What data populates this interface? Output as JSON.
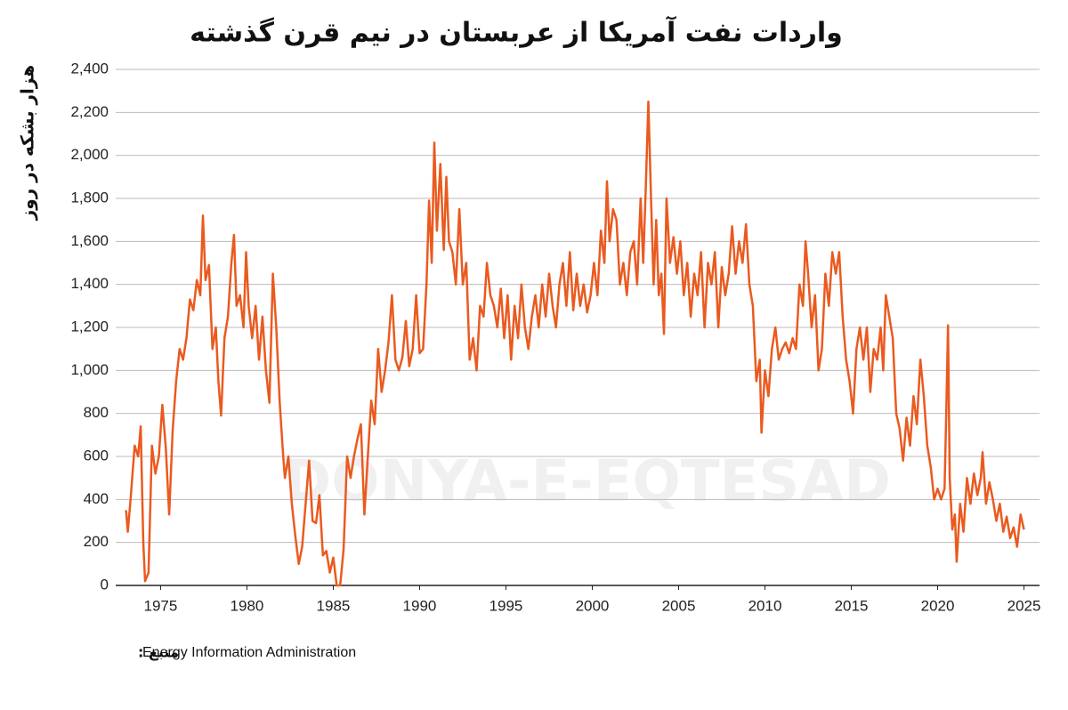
{
  "chart_data": {
    "type": "line",
    "title": "واردات نفت آمریکا از عربستان در نیم قرن گذشته",
    "y_label": "هزار بشکه در روز",
    "source_label": "منبع :",
    "source": "Energy Information Administration",
    "watermark": "DONYA-E-EQTESAD",
    "xlim": [
      1972.4,
      2025.9
    ],
    "xticks": [
      1975,
      1980,
      1985,
      1990,
      1995,
      2000,
      2005,
      2010,
      2015,
      2020,
      2025
    ],
    "ylim": [
      0,
      2400
    ],
    "yticks": [
      0,
      {
        "value": 200,
        "label": "200"
      },
      {
        "value": 400,
        "label": "400"
      },
      {
        "value": 600,
        "label": "600"
      },
      {
        "value": 800,
        "label": "800"
      },
      {
        "value": 1000,
        "label": "1,000"
      },
      {
        "value": 1200,
        "label": "1,200"
      },
      {
        "value": 1400,
        "label": "1,400"
      },
      {
        "value": 1600,
        "label": "1,600"
      },
      {
        "value": 1800,
        "label": "1,800"
      },
      {
        "value": 2000,
        "label": "2,000"
      },
      {
        "value": 2200,
        "label": "2,200"
      },
      {
        "value": 2400,
        "label": "2,400"
      }
    ],
    "grid": true,
    "x": [
      1973.0,
      1973.1,
      1973.25,
      1973.5,
      1973.7,
      1973.85,
      1974.0,
      1974.1,
      1974.3,
      1974.5,
      1974.7,
      1974.9,
      1975.1,
      1975.3,
      1975.5,
      1975.7,
      1975.9,
      1976.1,
      1976.3,
      1976.5,
      1976.7,
      1976.9,
      1977.1,
      1977.3,
      1977.45,
      1977.6,
      1977.8,
      1978.0,
      1978.2,
      1978.35,
      1978.5,
      1978.7,
      1978.9,
      1979.1,
      1979.25,
      1979.4,
      1979.6,
      1979.8,
      1979.95,
      1980.1,
      1980.3,
      1980.5,
      1980.7,
      1980.9,
      1981.1,
      1981.3,
      1981.5,
      1981.7,
      1981.9,
      1982.1,
      1982.2,
      1982.4,
      1982.6,
      1982.8,
      1983.0,
      1983.2,
      1983.4,
      1983.6,
      1983.8,
      1984.0,
      1984.2,
      1984.4,
      1984.6,
      1984.8,
      1985.0,
      1985.2,
      1985.4,
      1985.6,
      1985.8,
      1986.0,
      1986.2,
      1986.4,
      1986.6,
      1986.8,
      1987.0,
      1987.2,
      1987.4,
      1987.6,
      1987.8,
      1988.0,
      1988.2,
      1988.4,
      1988.6,
      1988.8,
      1989.0,
      1989.2,
      1989.4,
      1989.6,
      1989.8,
      1990.0,
      1990.2,
      1990.4,
      1990.55,
      1990.7,
      1990.85,
      1991.0,
      1991.2,
      1991.4,
      1991.55,
      1991.7,
      1991.9,
      1992.1,
      1992.3,
      1992.5,
      1992.7,
      1992.9,
      1993.1,
      1993.3,
      1993.5,
      1993.7,
      1993.9,
      1994.1,
      1994.3,
      1994.5,
      1994.7,
      1994.9,
      1995.1,
      1995.3,
      1995.5,
      1995.7,
      1995.9,
      1996.1,
      1996.3,
      1996.5,
      1996.7,
      1996.9,
      1997.1,
      1997.3,
      1997.5,
      1997.7,
      1997.9,
      1998.1,
      1998.3,
      1998.5,
      1998.7,
      1998.9,
      1999.1,
      1999.3,
      1999.5,
      1999.7,
      1999.9,
      2000.1,
      2000.3,
      2000.5,
      2000.7,
      2000.85,
      2001.0,
      2001.2,
      2001.4,
      2001.6,
      2001.8,
      2002.0,
      2002.2,
      2002.4,
      2002.6,
      2002.8,
      2002.95,
      2003.1,
      2003.25,
      2003.4,
      2003.55,
      2003.7,
      2003.85,
      2004.0,
      2004.15,
      2004.3,
      2004.5,
      2004.7,
      2004.9,
      2005.1,
      2005.3,
      2005.5,
      2005.7,
      2005.9,
      2006.1,
      2006.3,
      2006.5,
      2006.7,
      2006.9,
      2007.1,
      2007.3,
      2007.5,
      2007.7,
      2007.9,
      2008.1,
      2008.3,
      2008.5,
      2008.7,
      2008.9,
      2009.1,
      2009.3,
      2009.5,
      2009.7,
      2009.8,
      2010.0,
      2010.2,
      2010.4,
      2010.6,
      2010.8,
      2011.0,
      2011.2,
      2011.4,
      2011.6,
      2011.8,
      2012.0,
      2012.2,
      2012.35,
      2012.5,
      2012.7,
      2012.9,
      2013.1,
      2013.3,
      2013.5,
      2013.7,
      2013.9,
      2014.1,
      2014.3,
      2014.5,
      2014.7,
      2014.9,
      2015.1,
      2015.3,
      2015.5,
      2015.7,
      2015.9,
      2016.1,
      2016.3,
      2016.5,
      2016.7,
      2016.85,
      2017.0,
      2017.2,
      2017.4,
      2017.6,
      2017.8,
      2018.0,
      2018.2,
      2018.4,
      2018.6,
      2018.8,
      2019.0,
      2019.2,
      2019.4,
      2019.6,
      2019.8,
      2020.0,
      2020.2,
      2020.4,
      2020.5,
      2020.6,
      2020.7,
      2020.85,
      2021.0,
      2021.1,
      2021.3,
      2021.5,
      2021.7,
      2021.9,
      2022.1,
      2022.3,
      2022.5,
      2022.6,
      2022.8,
      2023.0,
      2023.2,
      2023.4,
      2023.6,
      2023.8,
      2024.0,
      2024.2,
      2024.4,
      2024.6,
      2024.8,
      2025.0
    ],
    "series": [
      {
        "name": "واردات",
        "color": "#ea5a1f",
        "values": [
          350,
          250,
          390,
          650,
          600,
          740,
          200,
          20,
          60,
          650,
          520,
          600,
          840,
          640,
          330,
          720,
          950,
          1100,
          1050,
          1150,
          1330,
          1280,
          1420,
          1350,
          1720,
          1420,
          1490,
          1100,
          1200,
          950,
          790,
          1150,
          1250,
          1500,
          1630,
          1300,
          1350,
          1200,
          1550,
          1300,
          1150,
          1300,
          1050,
          1250,
          1000,
          850,
          1450,
          1200,
          850,
          600,
          500,
          600,
          380,
          230,
          100,
          180,
          380,
          580,
          300,
          290,
          420,
          140,
          160,
          60,
          130,
          0,
          0,
          170,
          600,
          500,
          600,
          680,
          750,
          330,
          600,
          860,
          750,
          1100,
          900,
          1000,
          1130,
          1350,
          1050,
          1000,
          1060,
          1230,
          1020,
          1100,
          1350,
          1080,
          1100,
          1400,
          1790,
          1500,
          2060,
          1650,
          1960,
          1560,
          1900,
          1600,
          1550,
          1400,
          1750,
          1400,
          1500,
          1050,
          1150,
          1000,
          1300,
          1250,
          1500,
          1350,
          1300,
          1200,
          1380,
          1150,
          1350,
          1050,
          1300,
          1150,
          1400,
          1200,
          1100,
          1250,
          1350,
          1200,
          1400,
          1250,
          1450,
          1300,
          1200,
          1400,
          1500,
          1300,
          1550,
          1280,
          1450,
          1300,
          1400,
          1270,
          1350,
          1500,
          1350,
          1650,
          1500,
          1880,
          1600,
          1750,
          1700,
          1400,
          1500,
          1350,
          1550,
          1600,
          1400,
          1800,
          1500,
          1850,
          2250,
          1800,
          1400,
          1700,
          1350,
          1450,
          1170,
          1800,
          1500,
          1620,
          1450,
          1600,
          1350,
          1500,
          1250,
          1450,
          1350,
          1550,
          1200,
          1500,
          1400,
          1550,
          1200,
          1480,
          1350,
          1450,
          1670,
          1450,
          1600,
          1500,
          1680,
          1400,
          1300,
          950,
          1050,
          710,
          1000,
          880,
          1100,
          1200,
          1050,
          1100,
          1130,
          1080,
          1150,
          1100,
          1400,
          1300,
          1600,
          1450,
          1200,
          1350,
          1000,
          1100,
          1450,
          1300,
          1550,
          1450,
          1550,
          1250,
          1050,
          950,
          800,
          1100,
          1200,
          1050,
          1200,
          900,
          1100,
          1050,
          1200,
          1000,
          1350,
          1250,
          1150,
          800,
          730,
          580,
          780,
          650,
          880,
          750,
          1050,
          880,
          650,
          550,
          400,
          450,
          400,
          450,
          800,
          1210,
          500,
          260,
          330,
          110,
          380,
          250,
          500,
          380,
          520,
          420,
          500,
          620,
          380,
          480,
          400,
          300,
          380,
          250,
          320,
          220,
          270,
          180,
          330,
          260
        ]
      }
    ]
  }
}
